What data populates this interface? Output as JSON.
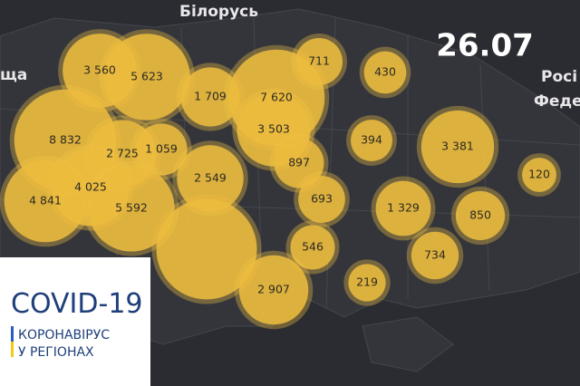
{
  "date": "26.07",
  "places": [
    "Білорусь",
    "щa",
    "Росі",
    "Феде"
  ],
  "info": {
    "title": "COVID-19",
    "line1": "КОРОНАВІРУС",
    "line2": "У РЕГІОНАХ"
  },
  "bubbles": [
    {
      "value": 8500,
      "label": null
    },
    {
      "value": 3560,
      "label": "3 560"
    },
    {
      "value": 5623,
      "label": "5 623"
    },
    {
      "value": 8832,
      "label": "8 832"
    },
    {
      "value": 1709,
      "label": "1 709"
    },
    {
      "value": 7620,
      "label": "7 620"
    },
    {
      "value": 3503,
      "label": "3 503"
    },
    {
      "value": 711,
      "label": "711"
    },
    {
      "value": 430,
      "label": "430"
    },
    {
      "value": 394,
      "label": "394"
    },
    {
      "value": 3381,
      "label": "3 381"
    },
    {
      "value": 120,
      "label": "120"
    },
    {
      "value": 2725,
      "label": "2 725"
    },
    {
      "value": 1059,
      "label": "1 059"
    },
    {
      "value": 897,
      "label": "897"
    },
    {
      "value": 2549,
      "label": "2 549"
    },
    {
      "value": 4025,
      "label": "4 025"
    },
    {
      "value": 5592,
      "label": "5 592"
    },
    {
      "value": 4841,
      "label": "4 841"
    },
    {
      "value": 693,
      "label": "693"
    },
    {
      "value": 1329,
      "label": "1 329"
    },
    {
      "value": 850,
      "label": "850"
    },
    {
      "value": 546,
      "label": "546"
    },
    {
      "value": 734,
      "label": "734"
    },
    {
      "value": 219,
      "label": "219"
    },
    {
      "value": 2907,
      "label": "2 907"
    }
  ]
}
